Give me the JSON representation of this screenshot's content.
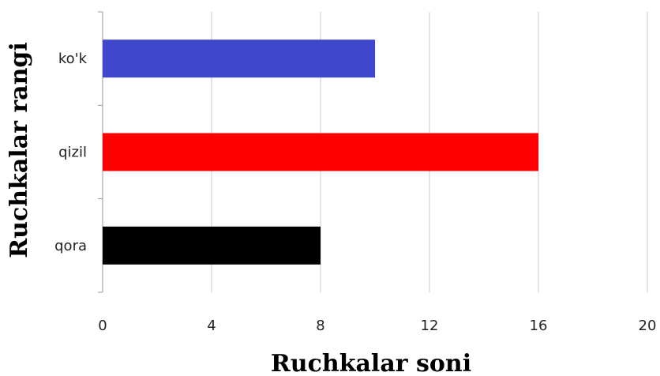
{
  "chart_data": {
    "type": "bar",
    "orientation": "horizontal",
    "categories": [
      "ko'k",
      "qizil",
      "qora"
    ],
    "values": [
      10,
      16,
      8
    ],
    "colors": [
      "#3f48cc",
      "#ff0000",
      "#000000"
    ],
    "title": "",
    "xlabel": "Ruchkalar soni",
    "ylabel": "Ruchkalar rangi",
    "xlim": [
      0,
      20
    ],
    "xticks": [
      0,
      4,
      8,
      12,
      16,
      20
    ],
    "grid": "vertical"
  }
}
